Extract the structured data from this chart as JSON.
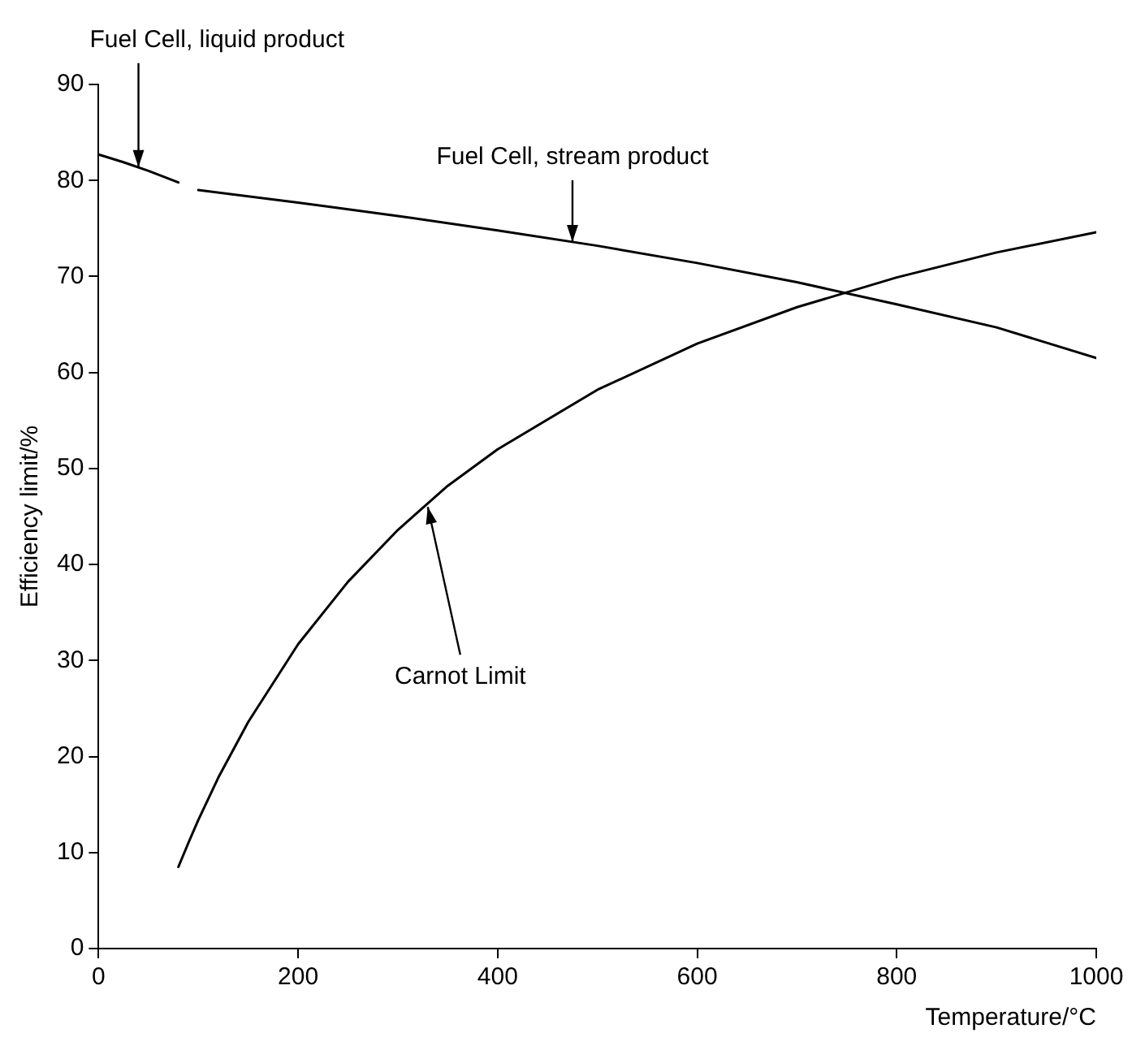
{
  "chart_data": {
    "type": "line",
    "xlabel": "Temperature/°C",
    "ylabel": "Efficiency limit/%",
    "xlim": [
      0,
      1000
    ],
    "xticks": [
      0,
      200,
      400,
      600,
      800,
      1000
    ],
    "ylim": [
      0,
      90
    ],
    "yticks": [
      0,
      10,
      20,
      30,
      40,
      50,
      60,
      70,
      80,
      90
    ],
    "grid": false,
    "legend": false,
    "marker": "none",
    "line_style": "solid",
    "series": [
      {
        "color": "#000000",
        "x": [
          0,
          25,
          50,
          80
        ],
        "values": [
          82.7,
          81.9,
          81.0,
          79.8
        ]
      },
      {
        "color": "#000000",
        "x": [
          100,
          200,
          300,
          400,
          500,
          600,
          700,
          800,
          900,
          1000
        ],
        "values": [
          79.0,
          77.7,
          76.3,
          74.8,
          73.2,
          71.4,
          69.4,
          67.1,
          64.7,
          61.5
        ]
      },
      {
        "color": "#000000",
        "x": [
          80,
          90,
          100,
          120,
          150,
          200,
          250,
          300,
          350,
          400,
          500,
          600,
          700,
          800,
          900,
          1000
        ],
        "values": [
          8.5,
          11.0,
          13.4,
          17.8,
          23.6,
          31.7,
          38.2,
          43.6,
          48.2,
          52.0,
          58.2,
          63.0,
          66.8,
          69.9,
          72.5,
          74.6
        ]
      }
    ],
    "annotations": [
      {
        "text": "Fuel Cell, liquid product",
        "x": 40,
        "y": 81.4
      },
      {
        "text": "Fuel Cell, stream product",
        "x": 475,
        "y": 73.6
      },
      {
        "text": "Carnot Limit",
        "x": 330,
        "y": 46
      }
    ]
  }
}
